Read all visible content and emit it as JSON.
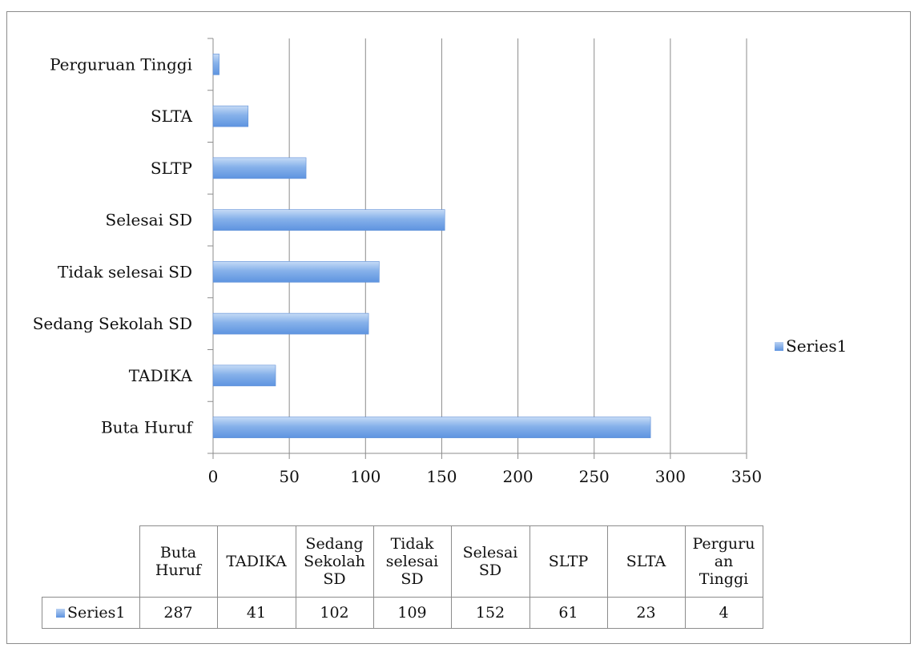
{
  "chart_data": {
    "type": "bar",
    "orientation": "horizontal",
    "title": "",
    "xlabel": "",
    "ylabel": "",
    "categories": [
      "Buta Huruf",
      "TADIKA",
      "Sedang Sekolah SD",
      "Tidak selesai SD",
      "Selesai SD",
      "SLTP",
      "SLTA",
      "Perguruan Tinggi"
    ],
    "series": [
      {
        "name": "Series1",
        "values": [
          287,
          41,
          102,
          109,
          152,
          61,
          23,
          4
        ]
      }
    ],
    "xlim": [
      0,
      350
    ],
    "xticks": [
      "0",
      "50",
      "100",
      "150",
      "200",
      "250",
      "300",
      "350"
    ],
    "grid": true,
    "legend": {
      "position": "right",
      "label": "Series1"
    },
    "bar_color": "#5e94e0"
  },
  "table": {
    "headers": [
      [
        "Buta",
        "Huruf"
      ],
      [
        "TADIKA"
      ],
      [
        "Sedang",
        "Sekolah",
        "SD"
      ],
      [
        "Tidak",
        "selesai",
        "SD"
      ],
      [
        "Selesai",
        "SD"
      ],
      [
        "SLTP"
      ],
      [
        "SLTA"
      ],
      [
        "Perguru",
        "an",
        "Tinggi"
      ]
    ],
    "series_label": "Series1",
    "values": [
      "287",
      "41",
      "102",
      "109",
      "152",
      "61",
      "23",
      "4"
    ]
  }
}
